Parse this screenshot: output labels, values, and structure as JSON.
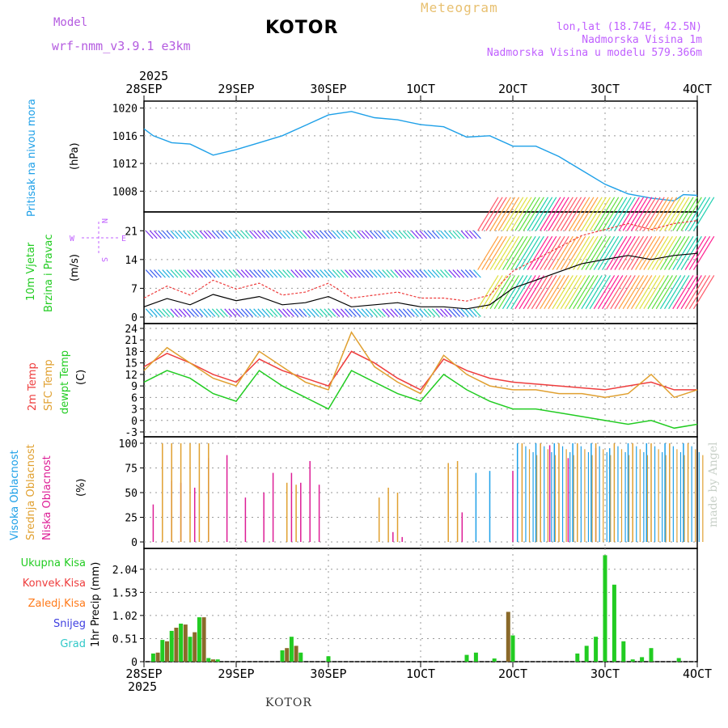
{
  "header": {
    "model_label": "Model",
    "model_name": "wrf-nmm_v3.9.1  e3km",
    "station": "KOTOR",
    "product": "Meteogram",
    "lonlat": "lon,lat (18.74E, 42.5N)",
    "elevation": "Nadmorska Visina 1m",
    "model_elevation": "Nadmorska Visina u modelu 579.366m",
    "footer_station": "KOTOR",
    "credit": "made by Angel"
  },
  "colors": {
    "pressure": "#1ea0e8",
    "temp2m": "#ee3d3d",
    "sfc": "#e0a030",
    "dewpt": "#22cc22",
    "wind_label": "#22cc22",
    "purple": "#b45be0"
  },
  "time_axis": {
    "year_top": "2025",
    "year_bottom": "2025",
    "labels": [
      "28SEP",
      "29SEP",
      "30SEP",
      "1OCT",
      "2OCT",
      "3OCT",
      "4OCT"
    ]
  },
  "wind_compass": {
    "n": "N",
    "s": "S",
    "e": "E",
    "w": "W"
  },
  "chart_data": [
    {
      "id": "pressure",
      "type": "line",
      "ylabel": "Pritisak na nivou mora",
      "units": "(hPa)",
      "ylim": [
        1005,
        1021
      ],
      "yticks": [
        "1008",
        "1012",
        "1016",
        "1020"
      ],
      "x_days": [
        0,
        0.1,
        0.3,
        0.5,
        0.75,
        1.0,
        1.25,
        1.5,
        1.75,
        2.0,
        2.25,
        2.5,
        2.75,
        3.0,
        3.25,
        3.5,
        3.75,
        4.0,
        4.25,
        4.5,
        4.75,
        5.0,
        5.25,
        5.5,
        5.75,
        5.85,
        6.0
      ],
      "values": [
        1017,
        1016,
        1015,
        1014.8,
        1013.2,
        1014,
        1015,
        1016,
        1017.5,
        1019,
        1019.5,
        1018.6,
        1018.3,
        1017.6,
        1017.3,
        1015.8,
        1016,
        1014.5,
        1014.5,
        1013,
        1011,
        1009,
        1007.6,
        1007,
        1006.6,
        1007.5,
        1007.4
      ]
    },
    {
      "id": "wind",
      "type": "line",
      "ylabel1": "10m Vjetar",
      "ylabel2": "Brzina i Pravac",
      "units": "(m/s)",
      "ylim": [
        0,
        24
      ],
      "yticks": [
        "0",
        "7",
        "14",
        "21"
      ],
      "x_days": [
        0,
        0.25,
        0.5,
        0.75,
        1.0,
        1.25,
        1.5,
        1.75,
        2.0,
        2.25,
        2.5,
        2.75,
        3.0,
        3.25,
        3.5,
        3.75,
        4.0,
        4.25,
        4.5,
        4.75,
        5.0,
        5.25,
        5.5,
        5.75,
        6.0
      ],
      "values": [
        2.5,
        4.5,
        3,
        5.5,
        4,
        5,
        3,
        3.5,
        5,
        2.5,
        3,
        3.5,
        2.5,
        2.5,
        2,
        3,
        7,
        9,
        11,
        13,
        14,
        15,
        14,
        15,
        15.5
      ]
    },
    {
      "id": "temperature",
      "type": "line",
      "ylabel1": "2m Temp",
      "ylabel2": "SFC Temp",
      "ylabel3": "dewpt Temp",
      "units": "(C)",
      "ylim": [
        -3,
        24
      ],
      "yticks": [
        "-3",
        "0",
        "3",
        "6",
        "9",
        "12",
        "15",
        "18",
        "21",
        "24"
      ],
      "x_days": [
        0,
        0.25,
        0.5,
        0.75,
        1.0,
        1.25,
        1.5,
        1.75,
        2.0,
        2.25,
        2.5,
        2.75,
        3.0,
        3.25,
        3.5,
        3.75,
        4.0,
        4.25,
        4.5,
        4.75,
        5.0,
        5.25,
        5.5,
        5.75,
        6.0
      ],
      "series": [
        {
          "name": "2m Temp",
          "values": [
            14,
            17.5,
            15,
            12,
            10,
            16,
            13,
            11,
            9,
            18,
            15,
            11,
            8,
            16,
            13,
            11,
            10,
            9.5,
            9,
            8.5,
            8,
            9,
            10,
            8,
            8
          ]
        },
        {
          "name": "SFC Temp",
          "values": [
            13,
            19,
            15,
            11,
            9,
            18,
            14,
            10,
            8,
            23,
            14,
            10,
            7,
            17,
            12,
            9,
            8,
            8,
            7,
            7,
            6,
            7,
            12,
            6,
            8
          ]
        },
        {
          "name": "dewpt Temp",
          "values": [
            10,
            13,
            11,
            7,
            5,
            13,
            9,
            6,
            3,
            13,
            10,
            7,
            5,
            12,
            8,
            5,
            3,
            3,
            2,
            1,
            0,
            -1,
            0,
            -2,
            -1
          ]
        }
      ]
    },
    {
      "id": "clouds",
      "type": "bar",
      "ylabel1": "Visoka Oblacnost",
      "ylabel2": "Srednja Oblacnost",
      "ylabel3": "Niska Oblacnost",
      "units": "(%)",
      "ylim": [
        0,
        100
      ],
      "yticks": [
        "0",
        "25",
        "50",
        "75",
        "100"
      ],
      "series": [
        {
          "name": "Niska",
          "x_days": [
            0.1,
            0.3,
            0.4,
            0.55,
            0.7,
            0.9,
            1.1,
            1.3,
            1.4,
            1.6,
            1.7,
            1.8,
            1.9,
            2.7,
            2.8,
            3.45,
            4.0,
            4.4,
            4.6,
            4.9
          ],
          "values": [
            38,
            62,
            60,
            55,
            85,
            88,
            45,
            50,
            70,
            70,
            60,
            82,
            58,
            10,
            5,
            30,
            72,
            98,
            85,
            95
          ]
        },
        {
          "name": "Srednja",
          "x_days": [
            0.2,
            0.3,
            0.4,
            0.5,
            0.6,
            0.7,
            1.55,
            1.65,
            2.55,
            2.65,
            2.75,
            3.0,
            3.1,
            3.3,
            3.4,
            4.1,
            4.3,
            4.5,
            4.7,
            4.9,
            5.1,
            5.3,
            5.5,
            5.7,
            5.9
          ],
          "values": [
            100,
            100,
            100,
            100,
            100,
            100,
            60,
            58,
            45,
            55,
            50,
            0,
            0,
            80,
            82,
            100,
            100,
            100,
            100,
            100,
            100,
            100,
            100,
            100,
            100
          ]
        },
        {
          "name": "Visoka",
          "x_days": [
            3.6,
            3.75,
            4.05,
            4.25,
            4.45,
            4.65,
            4.85,
            5.05,
            5.25,
            5.45,
            5.65,
            5.85
          ],
          "values": [
            70,
            72,
            100,
            100,
            100,
            100,
            100,
            95,
            100,
            100,
            100,
            100
          ]
        }
      ]
    },
    {
      "id": "precip",
      "type": "bar",
      "ylabel": "1hr Precip (mm)",
      "ylim": [
        0,
        2.5
      ],
      "yticks": [
        "0",
        "0.51",
        "1.02",
        "1.53",
        "2.04"
      ],
      "legend": [
        "Ukupna Kisa",
        "Konvek.Kisa",
        "Zaledj.Kisa",
        "Snijeg",
        "Grad"
      ],
      "legend_colors": [
        "#22cc22",
        "#ee3d3d",
        "#ff7a1a",
        "#4040e0",
        "#30c8c8"
      ],
      "series": [
        {
          "name": "Ukupna Kisa",
          "x_days": [
            0.1,
            0.2,
            0.3,
            0.4,
            0.5,
            0.6,
            0.7,
            0.8,
            1.5,
            1.6,
            1.7,
            2.0,
            3.5,
            3.6,
            3.8,
            4.0,
            4.7,
            4.8,
            4.9,
            5.0,
            5.1,
            5.2,
            5.3,
            5.4,
            5.5,
            5.8
          ],
          "values": [
            0.18,
            0.48,
            0.68,
            0.84,
            0.55,
            0.98,
            0.08,
            0.05,
            0.25,
            0.55,
            0.2,
            0.12,
            0.15,
            0.2,
            0.07,
            0.58,
            0.18,
            0.35,
            0.55,
            2.35,
            1.7,
            0.45,
            0.05,
            0.1,
            0.3,
            0.08
          ]
        },
        {
          "name": "Konvek.Kisa",
          "x_days": [
            0.15,
            0.25,
            0.35,
            0.45,
            0.55,
            0.65,
            0.75,
            1.55,
            1.65,
            3.95
          ],
          "values": [
            0.2,
            0.45,
            0.75,
            0.82,
            0.65,
            0.98,
            0.05,
            0.3,
            0.35,
            1.1
          ]
        }
      ]
    }
  ]
}
